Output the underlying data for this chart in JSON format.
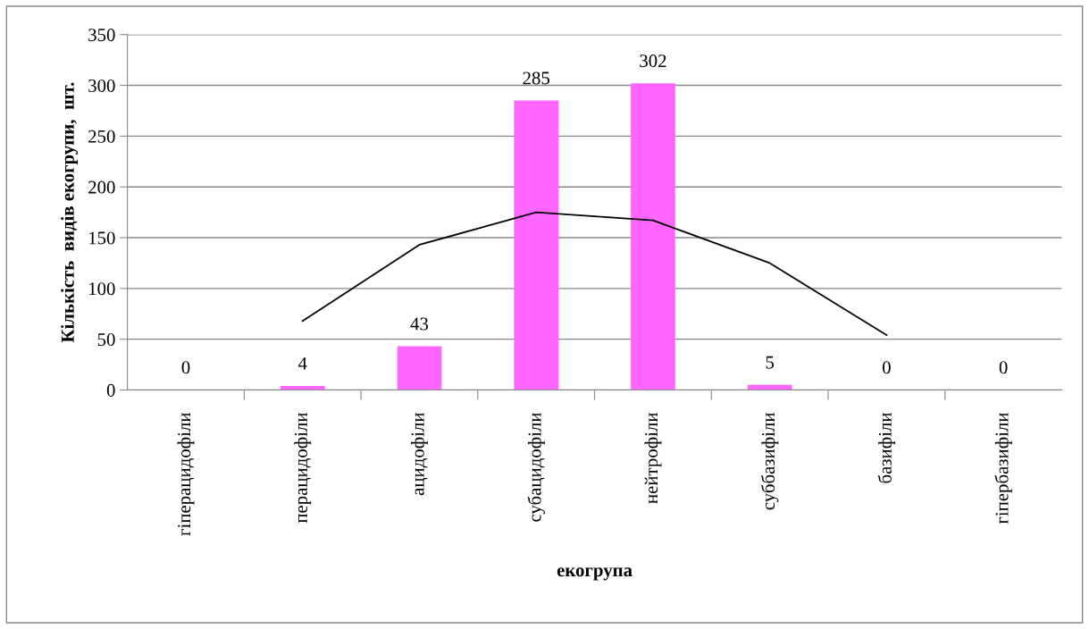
{
  "chart_data": {
    "type": "bar",
    "xlabel": "екогрупа",
    "ylabel": "Кількість  видів екогрупи,  шт.",
    "categories": [
      "гіперацидофіли",
      "перацидофіли",
      "ацидофіли",
      "субацидофіли",
      "нейтрофіли",
      "суббазифіли",
      "базифіли",
      "гіпербазифіли"
    ],
    "series": [
      {
        "color": "#ff66ff",
        "values": [
          0,
          4,
          43,
          285,
          302,
          5,
          0,
          0
        ],
        "value_labels": [
          "0",
          "4",
          "43",
          "285",
          "302",
          "5",
          "0",
          "0"
        ]
      },
      {
        "type": "line",
        "color": "#000000",
        "values": [
          null,
          68,
          143,
          175,
          167,
          125,
          54,
          null
        ]
      }
    ],
    "ylim": [
      0,
      350
    ],
    "yticks": [
      0,
      50,
      100,
      150,
      200,
      250,
      300,
      350
    ],
    "grid": "y",
    "legend": false
  }
}
